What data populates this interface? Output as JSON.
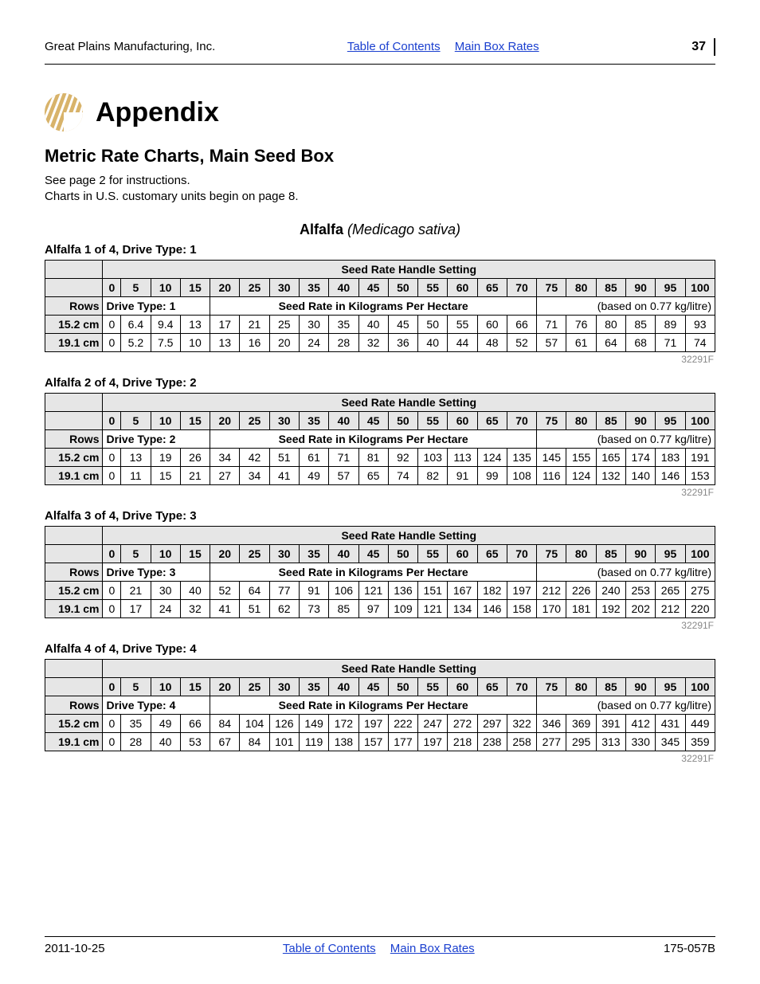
{
  "header": {
    "company": "Great Plains Manufacturing, Inc.",
    "link_toc": "Table of Contents",
    "link_rates": "Main Box Rates",
    "page_number": "37"
  },
  "appendix": {
    "title": "Appendix",
    "logo_fill": "#d8b36a"
  },
  "section": {
    "title": "Metric Rate Charts, Main Seed Box",
    "instr_line1": "See page 2 for instructions.",
    "instr_line2": "Charts in U.S. customary units begin on page 8."
  },
  "crop": {
    "name": "Alfalfa",
    "latin": "(Medicago sativa)"
  },
  "table_header": {
    "seed_rate_handle": "Seed Rate Handle Setting",
    "settings": [
      "0",
      "5",
      "10",
      "15",
      "20",
      "25",
      "30",
      "35",
      "40",
      "45",
      "50",
      "55",
      "60",
      "65",
      "70",
      "75",
      "80",
      "85",
      "90",
      "95",
      "100"
    ],
    "rows_label": "Rows",
    "seed_rate_kg": "Seed Rate in Kilograms Per Hectare",
    "based_on": "(based on 0.77 kg/litre)"
  },
  "charts": [
    {
      "caption": "Alfalfa 1 of 4, Drive Type: 1",
      "drive_type_label": "Drive Type: 1",
      "code": "32291F",
      "rows": [
        {
          "width": "15.2 cm",
          "values": [
            "0",
            "6.4",
            "9.4",
            "13",
            "17",
            "21",
            "25",
            "30",
            "35",
            "40",
            "45",
            "50",
            "55",
            "60",
            "66",
            "71",
            "76",
            "80",
            "85",
            "89",
            "93"
          ]
        },
        {
          "width": "19.1 cm",
          "values": [
            "0",
            "5.2",
            "7.5",
            "10",
            "13",
            "16",
            "20",
            "24",
            "28",
            "32",
            "36",
            "40",
            "44",
            "48",
            "52",
            "57",
            "61",
            "64",
            "68",
            "71",
            "74"
          ]
        }
      ]
    },
    {
      "caption": "Alfalfa 2 of 4, Drive Type: 2",
      "drive_type_label": "Drive Type: 2",
      "code": "32291F",
      "rows": [
        {
          "width": "15.2 cm",
          "values": [
            "0",
            "13",
            "19",
            "26",
            "34",
            "42",
            "51",
            "61",
            "71",
            "81",
            "92",
            "103",
            "113",
            "124",
            "135",
            "145",
            "155",
            "165",
            "174",
            "183",
            "191"
          ]
        },
        {
          "width": "19.1 cm",
          "values": [
            "0",
            "11",
            "15",
            "21",
            "27",
            "34",
            "41",
            "49",
            "57",
            "65",
            "74",
            "82",
            "91",
            "99",
            "108",
            "116",
            "124",
            "132",
            "140",
            "146",
            "153"
          ]
        }
      ]
    },
    {
      "caption": "Alfalfa 3 of 4, Drive Type: 3",
      "drive_type_label": "Drive Type: 3",
      "code": "32291F",
      "rows": [
        {
          "width": "15.2 cm",
          "values": [
            "0",
            "21",
            "30",
            "40",
            "52",
            "64",
            "77",
            "91",
            "106",
            "121",
            "136",
            "151",
            "167",
            "182",
            "197",
            "212",
            "226",
            "240",
            "253",
            "265",
            "275"
          ]
        },
        {
          "width": "19.1 cm",
          "values": [
            "0",
            "17",
            "24",
            "32",
            "41",
            "51",
            "62",
            "73",
            "85",
            "97",
            "109",
            "121",
            "134",
            "146",
            "158",
            "170",
            "181",
            "192",
            "202",
            "212",
            "220"
          ]
        }
      ]
    },
    {
      "caption": "Alfalfa 4 of 4, Drive Type: 4",
      "drive_type_label": "Drive Type: 4",
      "code": "32291F",
      "rows": [
        {
          "width": "15.2 cm",
          "values": [
            "0",
            "35",
            "49",
            "66",
            "84",
            "104",
            "126",
            "149",
            "172",
            "197",
            "222",
            "247",
            "272",
            "297",
            "322",
            "346",
            "369",
            "391",
            "412",
            "431",
            "449"
          ]
        },
        {
          "width": "19.1 cm",
          "values": [
            "0",
            "28",
            "40",
            "53",
            "67",
            "84",
            "101",
            "119",
            "138",
            "157",
            "177",
            "197",
            "218",
            "238",
            "258",
            "277",
            "295",
            "313",
            "330",
            "345",
            "359"
          ]
        }
      ]
    }
  ],
  "footer": {
    "date": "2011-10-25",
    "link_toc": "Table of Contents",
    "link_rates": "Main Box Rates",
    "doc": "175-057B"
  }
}
